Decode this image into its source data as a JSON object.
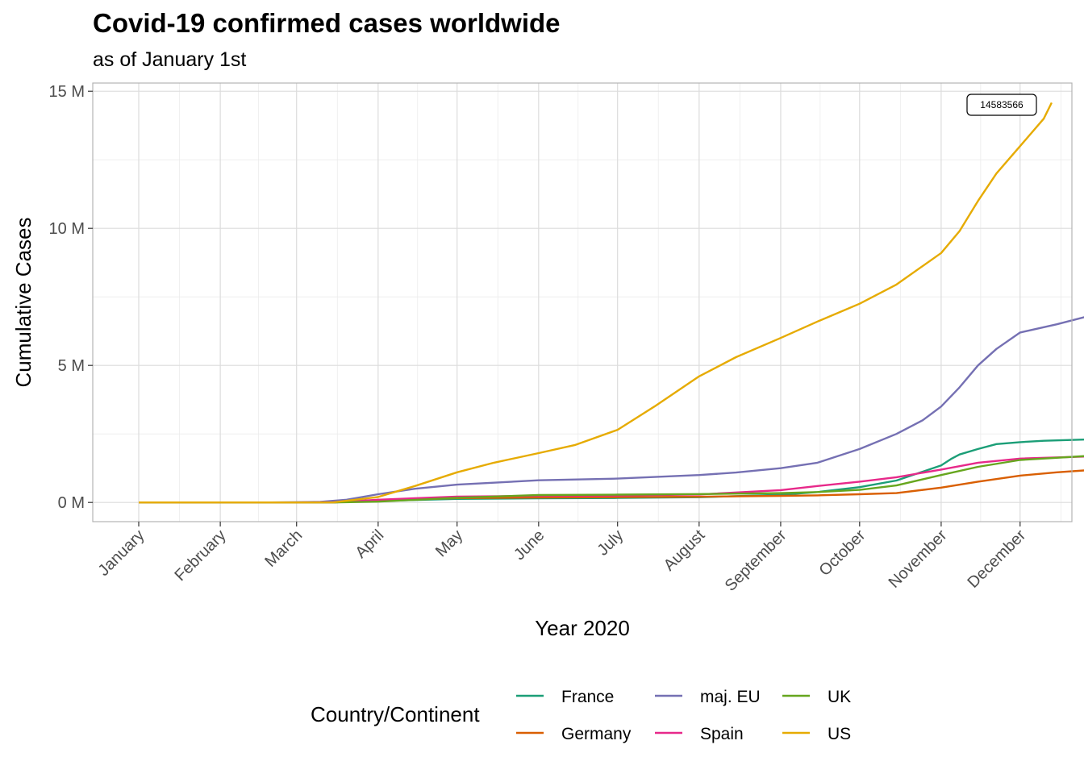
{
  "chart_data": {
    "type": "line",
    "title": "Covid-19 confirmed cases worldwide",
    "subtitle": "as of January 1st",
    "xlabel": "Year 2020",
    "ylabel": "Cumulative Cases",
    "x_tick_labels": [
      "January",
      "February",
      "March",
      "April",
      "May",
      "June",
      "July",
      "August",
      "September",
      "October",
      "November",
      "December"
    ],
    "y_tick_labels": [
      "0 M",
      "5 M",
      "10 M",
      "15 M"
    ],
    "y_ticks": [
      0,
      5000000,
      10000000,
      15000000
    ],
    "ylim": [
      -700000,
      15300000
    ],
    "grid": true,
    "legend": {
      "title": "Country/Continent",
      "position": "bottom"
    },
    "annotation": {
      "text": "14583566",
      "x": "2020-12-27",
      "y": 14583566
    },
    "series": [
      {
        "name": "France",
        "color": "#1B9E77",
        "points": [
          [
            "2020-01-01",
            0
          ],
          [
            "2020-03-01",
            100
          ],
          [
            "2020-03-15",
            5000
          ],
          [
            "2020-04-01",
            52000
          ],
          [
            "2020-05-01",
            130000
          ],
          [
            "2020-06-01",
            150000
          ],
          [
            "2020-07-01",
            165000
          ],
          [
            "2020-08-01",
            190000
          ],
          [
            "2020-09-01",
            280000
          ],
          [
            "2020-09-15",
            380000
          ],
          [
            "2020-10-01",
            560000
          ],
          [
            "2020-10-15",
            800000
          ],
          [
            "2020-11-01",
            1350000
          ],
          [
            "2020-11-05",
            1600000
          ],
          [
            "2020-11-08",
            1750000
          ],
          [
            "2020-11-15",
            1950000
          ],
          [
            "2020-11-22",
            2130000
          ],
          [
            "2020-12-01",
            2200000
          ],
          [
            "2020-12-10",
            2250000
          ],
          [
            "2020-12-27",
            2300000
          ]
        ]
      },
      {
        "name": "Germany",
        "color": "#D95F02",
        "points": [
          [
            "2020-01-01",
            0
          ],
          [
            "2020-03-01",
            100
          ],
          [
            "2020-03-15",
            4000
          ],
          [
            "2020-04-01",
            70000
          ],
          [
            "2020-05-01",
            160000
          ],
          [
            "2020-06-01",
            180000
          ],
          [
            "2020-07-01",
            195000
          ],
          [
            "2020-08-01",
            210000
          ],
          [
            "2020-09-01",
            240000
          ],
          [
            "2020-09-15",
            260000
          ],
          [
            "2020-10-01",
            300000
          ],
          [
            "2020-10-15",
            340000
          ],
          [
            "2020-11-01",
            540000
          ],
          [
            "2020-11-15",
            760000
          ],
          [
            "2020-12-01",
            980000
          ],
          [
            "2020-12-15",
            1100000
          ],
          [
            "2020-12-27",
            1180000
          ]
        ]
      },
      {
        "name": "maj. EU",
        "color": "#7570B3",
        "points": [
          [
            "2020-01-01",
            0
          ],
          [
            "2020-02-20",
            100
          ],
          [
            "2020-03-10",
            20000
          ],
          [
            "2020-03-20",
            100000
          ],
          [
            "2020-04-01",
            300000
          ],
          [
            "2020-04-15",
            500000
          ],
          [
            "2020-05-01",
            650000
          ],
          [
            "2020-06-01",
            810000
          ],
          [
            "2020-07-01",
            870000
          ],
          [
            "2020-08-01",
            1000000
          ],
          [
            "2020-08-15",
            1090000
          ],
          [
            "2020-09-01",
            1250000
          ],
          [
            "2020-09-15",
            1450000
          ],
          [
            "2020-10-01",
            1950000
          ],
          [
            "2020-10-15",
            2500000
          ],
          [
            "2020-10-25",
            3000000
          ],
          [
            "2020-11-01",
            3500000
          ],
          [
            "2020-11-08",
            4200000
          ],
          [
            "2020-11-15",
            5000000
          ],
          [
            "2020-11-22",
            5600000
          ],
          [
            "2020-12-01",
            6200000
          ],
          [
            "2020-12-15",
            6500000
          ],
          [
            "2020-12-27",
            6800000
          ]
        ]
      },
      {
        "name": "Spain",
        "color": "#E7298A",
        "points": [
          [
            "2020-01-01",
            0
          ],
          [
            "2020-03-01",
            100
          ],
          [
            "2020-03-15",
            6000
          ],
          [
            "2020-04-01",
            100000
          ],
          [
            "2020-05-01",
            215000
          ],
          [
            "2020-06-01",
            240000
          ],
          [
            "2020-07-01",
            250000
          ],
          [
            "2020-08-01",
            290000
          ],
          [
            "2020-09-01",
            450000
          ],
          [
            "2020-09-15",
            600000
          ],
          [
            "2020-10-01",
            760000
          ],
          [
            "2020-10-15",
            920000
          ],
          [
            "2020-11-01",
            1200000
          ],
          [
            "2020-11-15",
            1450000
          ],
          [
            "2020-12-01",
            1600000
          ],
          [
            "2020-12-27",
            1680000
          ]
        ]
      },
      {
        "name": "UK",
        "color": "#66A61E",
        "points": [
          [
            "2020-01-01",
            0
          ],
          [
            "2020-03-01",
            100
          ],
          [
            "2020-03-15",
            1000
          ],
          [
            "2020-04-01",
            30000
          ],
          [
            "2020-05-01",
            170000
          ],
          [
            "2020-06-01",
            270000
          ],
          [
            "2020-07-01",
            285000
          ],
          [
            "2020-08-01",
            305000
          ],
          [
            "2020-09-01",
            340000
          ],
          [
            "2020-09-15",
            380000
          ],
          [
            "2020-10-01",
            460000
          ],
          [
            "2020-10-15",
            620000
          ],
          [
            "2020-11-01",
            1000000
          ],
          [
            "2020-11-15",
            1300000
          ],
          [
            "2020-12-01",
            1550000
          ],
          [
            "2020-12-27",
            1700000
          ]
        ]
      },
      {
        "name": "US",
        "color": "#E6AB02",
        "points": [
          [
            "2020-01-01",
            0
          ],
          [
            "2020-03-01",
            100
          ],
          [
            "2020-03-15",
            3000
          ],
          [
            "2020-04-01",
            200000
          ],
          [
            "2020-04-15",
            600000
          ],
          [
            "2020-05-01",
            1100000
          ],
          [
            "2020-05-15",
            1450000
          ],
          [
            "2020-06-01",
            1800000
          ],
          [
            "2020-06-15",
            2100000
          ],
          [
            "2020-07-01",
            2650000
          ],
          [
            "2020-07-15",
            3500000
          ],
          [
            "2020-08-01",
            4600000
          ],
          [
            "2020-08-15",
            5300000
          ],
          [
            "2020-09-01",
            6000000
          ],
          [
            "2020-09-15",
            6600000
          ],
          [
            "2020-10-01",
            7250000
          ],
          [
            "2020-10-15",
            7950000
          ],
          [
            "2020-11-01",
            9100000
          ],
          [
            "2020-11-08",
            9900000
          ],
          [
            "2020-11-15",
            11000000
          ],
          [
            "2020-11-22",
            12000000
          ],
          [
            "2020-12-01",
            13000000
          ],
          [
            "2020-12-10",
            14000000
          ],
          [
            "2020-12-13",
            14583566
          ]
        ]
      }
    ]
  }
}
